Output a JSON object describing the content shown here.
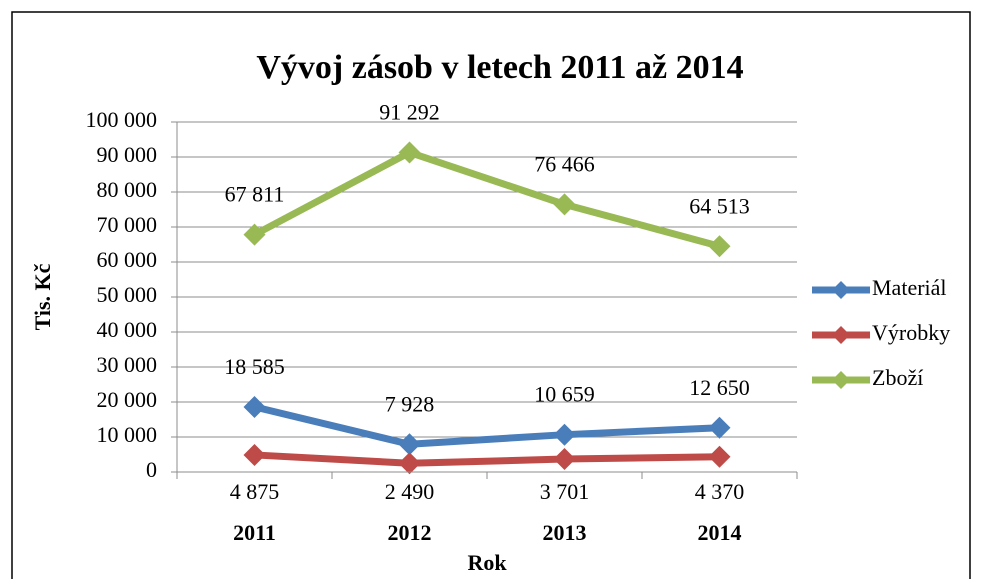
{
  "chart_data": {
    "type": "line",
    "title": "Vývoj zásob v letech 2011 až 2014",
    "x_label": "Rok",
    "y_label": "Tis. Kč",
    "categories": [
      "2011",
      "2012",
      "2013",
      "2014"
    ],
    "series": [
      {
        "name": "Materiál",
        "color": "#4a7ebb",
        "values": [
          18585,
          7928,
          10659,
          12650
        ],
        "value_labels": [
          "18 585",
          "7 928",
          "10 659",
          "12 650"
        ]
      },
      {
        "name": "Výrobky",
        "color": "#be4b48",
        "values": [
          4875,
          2490,
          3701,
          4370
        ],
        "value_labels": [
          "4 875",
          "2 490",
          "3 701",
          "4 370"
        ]
      },
      {
        "name": "Zboží",
        "color": "#98b954",
        "values": [
          67811,
          91292,
          76466,
          64513
        ],
        "value_labels": [
          "67 811",
          "91 292",
          "76 466",
          "64 513"
        ]
      }
    ],
    "ylim": [
      0,
      100000
    ],
    "yticks": [
      0,
      {
        "value": 10000,
        "label": "10 000"
      },
      {
        "value": 20000,
        "label": "20 000"
      },
      {
        "value": 30000,
        "label": "30 000"
      },
      {
        "value": 40000,
        "label": "40 000"
      },
      {
        "value": 50000,
        "label": "50 000"
      },
      {
        "value": 60000,
        "label": "60 000"
      },
      {
        "value": 70000,
        "label": "70 000"
      },
      {
        "value": 80000,
        "label": "80 000"
      },
      {
        "value": 90000,
        "label": "90 000"
      },
      {
        "value": 100000,
        "label": "100 000"
      }
    ],
    "grid": true,
    "legend": "right"
  }
}
